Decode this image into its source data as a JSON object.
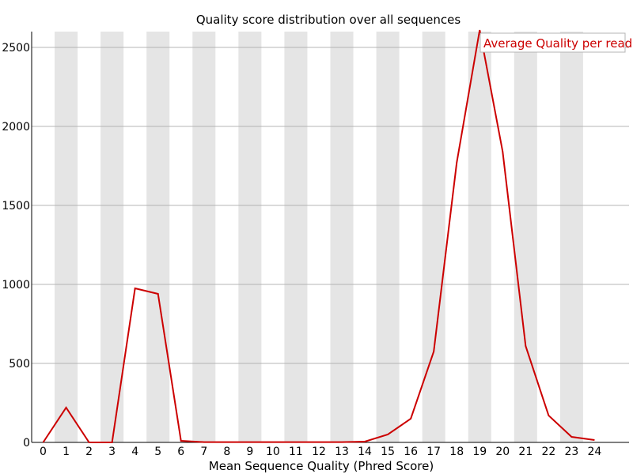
{
  "chart_data": {
    "type": "line",
    "title": "Quality score distribution over all sequences",
    "xlabel": "Mean Sequence Quality (Phred Score)",
    "ylabel": "",
    "x": [
      0,
      1,
      2,
      3,
      4,
      5,
      6,
      7,
      8,
      9,
      10,
      11,
      12,
      13,
      14,
      15,
      16,
      17,
      18,
      19,
      20,
      21,
      22,
      23,
      24
    ],
    "xticks": [
      "0",
      "1",
      "2",
      "3",
      "4",
      "5",
      "6",
      "7",
      "8",
      "9",
      "10",
      "11",
      "12",
      "13",
      "14",
      "15",
      "16",
      "17",
      "18",
      "19",
      "20",
      "21",
      "22",
      "23",
      "24"
    ],
    "yticks": [
      "0",
      "500",
      "1000",
      "1500",
      "2000",
      "2500"
    ],
    "ylim": [
      0,
      2600
    ],
    "grid": true,
    "alternating_bands": true,
    "legend_position": "top-right",
    "series": [
      {
        "name": "Average Quality per read",
        "color": "#cc0000",
        "values": [
          0,
          220,
          0,
          0,
          975,
          940,
          10,
          2,
          2,
          2,
          2,
          2,
          2,
          2,
          5,
          50,
          150,
          575,
          1770,
          2610,
          1840,
          610,
          170,
          35,
          15
        ]
      }
    ]
  }
}
